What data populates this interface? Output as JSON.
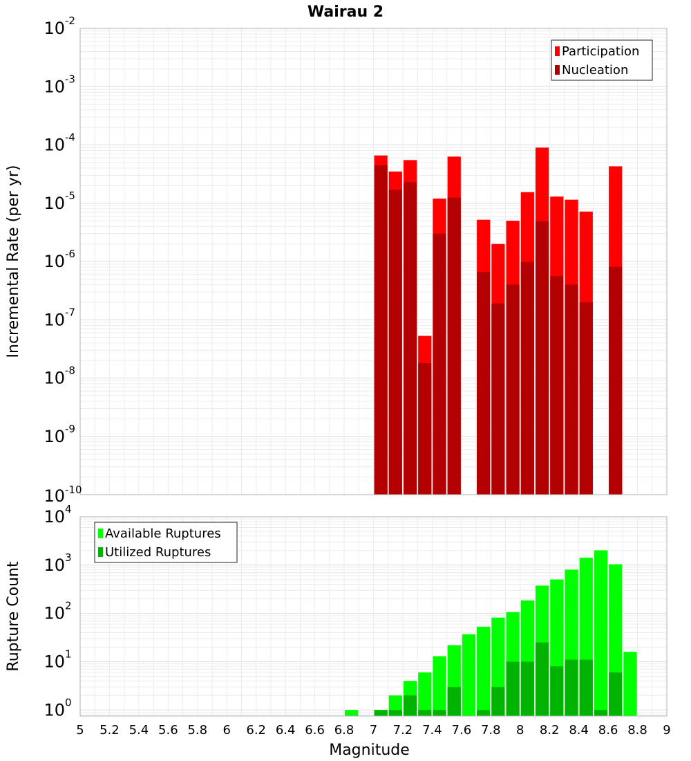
{
  "chart_data": [
    {
      "type": "bar",
      "title": "Wairau 2",
      "ylabel": "Incremental Rate (per yr)",
      "xlabel": "",
      "y_scale": "log",
      "ylim": [
        1e-10,
        0.01
      ],
      "xlim": [
        5,
        9
      ],
      "grid": true,
      "legend_position": "top-right",
      "y_ticks": [
        {
          "base": "10",
          "exp": "-10"
        },
        {
          "base": "10",
          "exp": "-9"
        },
        {
          "base": "10",
          "exp": "-8"
        },
        {
          "base": "10",
          "exp": "-7"
        },
        {
          "base": "10",
          "exp": "-6"
        },
        {
          "base": "10",
          "exp": "-5"
        },
        {
          "base": "10",
          "exp": "-4"
        },
        {
          "base": "10",
          "exp": "-3"
        },
        {
          "base": "10",
          "exp": "-2"
        }
      ],
      "x": [
        7.05,
        7.15,
        7.25,
        7.35,
        7.45,
        7.55,
        7.75,
        7.85,
        7.95,
        8.05,
        8.15,
        8.25,
        8.35,
        8.45,
        8.65
      ],
      "series": [
        {
          "name": "Participation",
          "color": "#ff0000",
          "values": [
            6.6e-05,
            3.5e-05,
            5.5e-05,
            5.3e-08,
            1.2e-05,
            6.3e-05,
            5.2e-06,
            2e-06,
            5e-06,
            1.55e-05,
            9e-05,
            1.3e-05,
            1.15e-05,
            7.2e-06,
            4.3e-05
          ]
        },
        {
          "name": "Nucleation",
          "color": "#b30000",
          "values": [
            4.5e-05,
            1.7e-05,
            2.3e-05,
            1.8e-08,
            3e-06,
            1.25e-05,
            6.6e-07,
            1.9e-07,
            4e-07,
            9.8e-07,
            4.9e-06,
            5.6e-07,
            4e-07,
            2e-07,
            8.1e-07
          ]
        }
      ]
    },
    {
      "type": "bar",
      "title": "",
      "ylabel": "Rupture Count",
      "xlabel": "Magnitude",
      "y_scale": "log",
      "ylim": [
        0.75,
        10000
      ],
      "xlim": [
        5,
        9
      ],
      "grid": true,
      "legend_position": "top-left",
      "y_ticks": [
        {
          "base": "10",
          "exp": "0"
        },
        {
          "base": "10",
          "exp": "1"
        },
        {
          "base": "10",
          "exp": "2"
        },
        {
          "base": "10",
          "exp": "3"
        },
        {
          "base": "10",
          "exp": "4"
        }
      ],
      "x_tick_labels": [
        "5",
        "5.2",
        "5.4",
        "5.6",
        "5.8",
        "6",
        "6.2",
        "6.4",
        "6.6",
        "6.8",
        "7",
        "7.2",
        "7.4",
        "7.6",
        "7.8",
        "8",
        "8.2",
        "8.4",
        "8.6",
        "8.8",
        "9"
      ],
      "x": [
        6.85,
        7.05,
        7.15,
        7.25,
        7.35,
        7.45,
        7.55,
        7.65,
        7.75,
        7.85,
        7.95,
        8.05,
        8.15,
        8.25,
        8.35,
        8.45,
        8.55,
        8.65,
        8.75
      ],
      "series": [
        {
          "name": "Available Ruptures",
          "color": "#00ff00",
          "values": [
            1,
            1,
            2,
            4,
            6,
            13,
            22,
            37,
            53,
            82,
            106,
            186,
            377,
            505,
            805,
            1420,
            2023,
            1040,
            16
          ]
        },
        {
          "name": "Utilized Ruptures",
          "color": "#00b300",
          "values": [
            0,
            1,
            1,
            2,
            1,
            1,
            3,
            0,
            1,
            3,
            10,
            10,
            25,
            8,
            11,
            11,
            1,
            6,
            0
          ]
        }
      ]
    }
  ]
}
